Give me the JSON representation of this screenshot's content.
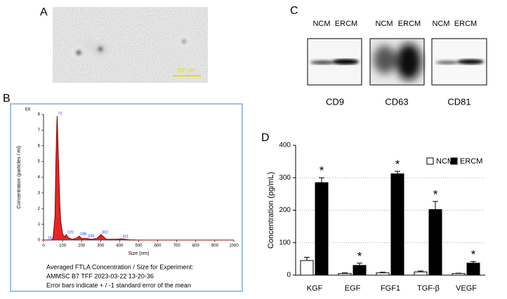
{
  "panel_labels": [
    "A",
    "B",
    "C",
    "D"
  ],
  "image_a": {
    "scale_label": "200 nm"
  },
  "blots": {
    "lanes": [
      "NCM",
      "ERCM"
    ],
    "markers": [
      "CD9",
      "CD63",
      "CD81"
    ]
  },
  "chart_data": [
    {
      "type": "line",
      "unit_label": "E6",
      "x_label": "Size (nm)",
      "y_label": "Concentration (particles / ml)",
      "x": [
        0,
        20,
        40,
        50,
        60,
        65,
        70,
        72,
        75,
        80,
        85,
        90,
        100,
        110,
        120,
        130,
        150,
        170,
        188,
        200,
        229,
        250,
        280,
        302,
        330,
        380,
        411,
        450,
        500,
        600,
        700,
        800,
        900,
        1000
      ],
      "values": [
        0,
        0,
        0,
        0.1,
        1.5,
        5,
        7.5,
        7.9,
        6.5,
        4.5,
        2.5,
        1.2,
        0.4,
        0.2,
        0.35,
        0.15,
        0.05,
        0.1,
        0.25,
        0.1,
        0.1,
        0.05,
        0.1,
        0.35,
        0.05,
        0.05,
        0.08,
        0.02,
        0,
        0,
        0,
        0,
        0,
        0
      ],
      "color": "#8b0000",
      "fill": "#e00000",
      "peaks": [
        18,
        72,
        120,
        188,
        229,
        302,
        411
      ],
      "xlim": [
        0,
        1000
      ],
      "xticks": [
        0,
        100,
        200,
        300,
        400,
        500,
        600,
        700,
        800,
        900,
        1000
      ],
      "ylim": [
        0,
        8
      ],
      "yticks": [
        0,
        1,
        2,
        3,
        4,
        5,
        6,
        7,
        8
      ],
      "caption": [
        "Averaged FTLA Concentration / Size for Experiment:",
        "AMMSC B7 TFF 2023-03-22 13-20-36",
        "Error bars indicate + / -1 standard error of the mean"
      ]
    },
    {
      "type": "bar",
      "y_label": "Concentration (pg/mL)",
      "categories": [
        "KGF",
        "EGF",
        "FGF1",
        "TGF-β",
        "VEGF"
      ],
      "series": [
        {
          "name": "NCM",
          "color": "#ffffff",
          "values": [
            45,
            5,
            7,
            10,
            5
          ],
          "errors": [
            10,
            2,
            2,
            3,
            1
          ]
        },
        {
          "name": "ERCM",
          "color": "#000000",
          "values": [
            285,
            30,
            312,
            202,
            37
          ],
          "errors": [
            15,
            7,
            8,
            25,
            5
          ]
        }
      ],
      "significance": [
        "*",
        "*",
        "*",
        "*",
        "*"
      ],
      "ylim": [
        0,
        400
      ],
      "yticks": [
        0,
        100,
        200,
        300,
        400
      ],
      "grid": true,
      "legend": "top-right"
    }
  ]
}
